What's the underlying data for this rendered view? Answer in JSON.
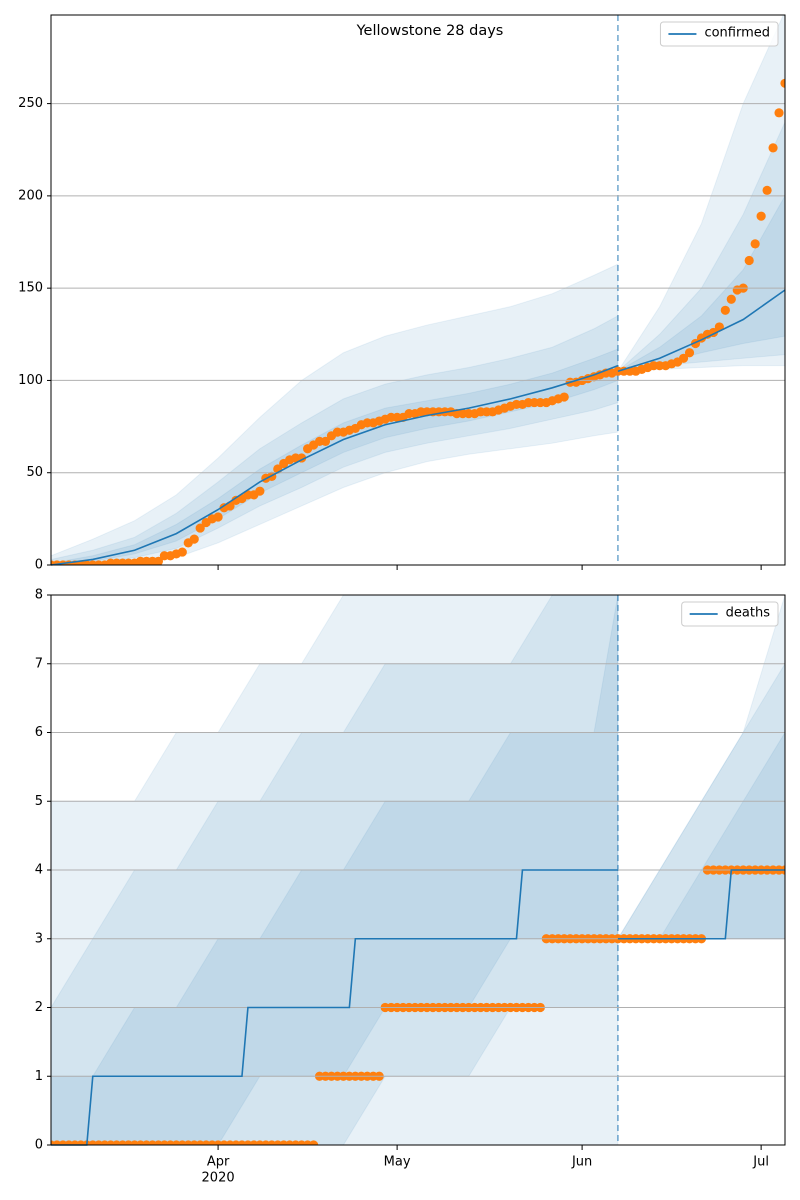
{
  "chart_data": [
    {
      "type": "line",
      "title": "Yellowstone 28 days",
      "sharex": true,
      "legend": "upper right",
      "grid": true,
      "xlim": [
        64,
        187
      ],
      "ylim": [
        0,
        298
      ],
      "yticks": [
        0,
        50,
        100,
        150,
        200,
        250
      ],
      "forecast_start": 159,
      "series": [
        {
          "name": "confirmed",
          "color": "#1f77b4",
          "x": [
            64,
            71,
            78,
            85,
            92,
            99,
            106,
            113,
            120,
            127,
            134,
            141,
            148,
            155,
            159,
            159,
            159,
            166,
            173,
            180,
            187
          ],
          "values": [
            0,
            3,
            8,
            17,
            30,
            45,
            57,
            68,
            76,
            81,
            85,
            90,
            96,
            103,
            108,
            null,
            105,
            112,
            122,
            133,
            149
          ]
        }
      ],
      "band_color": "#1f77b4",
      "band_x": [
        64,
        71,
        78,
        85,
        92,
        99,
        106,
        113,
        120,
        127,
        134,
        141,
        148,
        155,
        159,
        159,
        166,
        173,
        180,
        187
      ],
      "bands": [
        {
          "lower": [
            0,
            0,
            1,
            4,
            12,
            22,
            32,
            42,
            50,
            56,
            60,
            63,
            66,
            70,
            72,
            105,
            106,
            107,
            108,
            108
          ],
          "upper": [
            5,
            14,
            24,
            38,
            58,
            80,
            100,
            115,
            124,
            130,
            135,
            140,
            147,
            157,
            163,
            105,
            140,
            185,
            250,
            300
          ]
        },
        {
          "lower": [
            0,
            1,
            4,
            9,
            20,
            32,
            42,
            53,
            61,
            66,
            70,
            74,
            79,
            84,
            88,
            105,
            108,
            110,
            112,
            114
          ],
          "upper": [
            3,
            8,
            15,
            28,
            45,
            63,
            77,
            90,
            98,
            103,
            107,
            112,
            118,
            128,
            135,
            105,
            125,
            150,
            190,
            240
          ]
        },
        {
          "lower": [
            0,
            2,
            6,
            13,
            25,
            39,
            50,
            61,
            69,
            74,
            78,
            83,
            88,
            95,
            100,
            105,
            109,
            115,
            120,
            124
          ],
          "upper": [
            1,
            5,
            11,
            22,
            36,
            52,
            65,
            77,
            85,
            89,
            93,
            98,
            104,
            112,
            117,
            105,
            118,
            135,
            160,
            200
          ]
        }
      ],
      "observed": {
        "color": "#ff7f0e",
        "x": [
          64,
          65,
          66,
          67,
          68,
          69,
          70,
          71,
          72,
          73,
          74,
          75,
          76,
          77,
          78,
          79,
          80,
          81,
          82,
          83,
          84,
          85,
          86,
          87,
          88,
          89,
          90,
          91,
          92,
          93,
          94,
          95,
          96,
          97,
          98,
          99,
          100,
          101,
          102,
          103,
          104,
          105,
          106,
          107,
          108,
          109,
          110,
          111,
          112,
          113,
          114,
          115,
          116,
          117,
          118,
          119,
          120,
          121,
          122,
          123,
          124,
          125,
          126,
          127,
          128,
          129,
          130,
          131,
          132,
          133,
          134,
          135,
          136,
          137,
          138,
          139,
          140,
          141,
          142,
          143,
          144,
          145,
          146,
          147,
          148,
          149,
          150,
          151,
          152,
          153,
          154,
          155,
          156,
          157,
          158,
          159,
          160,
          161,
          162,
          163,
          164,
          165,
          166,
          167,
          168,
          169,
          170,
          171,
          172,
          173,
          174,
          175,
          176,
          177,
          178,
          179,
          180,
          181,
          182,
          183,
          184,
          185,
          186,
          187
        ],
        "values": [
          0,
          0,
          0,
          0,
          0,
          0,
          0,
          0,
          0,
          0,
          1,
          1,
          1,
          1,
          1,
          2,
          2,
          2,
          2,
          5,
          5,
          6,
          7,
          12,
          14,
          20,
          23,
          25,
          26,
          31,
          32,
          35,
          36,
          38,
          38,
          40,
          47,
          48,
          52,
          55,
          57,
          58,
          58,
          63,
          65,
          67,
          67,
          70,
          72,
          72,
          73,
          74,
          76,
          77,
          77,
          78,
          79,
          80,
          80,
          80,
          82,
          82,
          83,
          83,
          83,
          83,
          83,
          83,
          82,
          82,
          82,
          82,
          83,
          83,
          83,
          84,
          85,
          86,
          87,
          87,
          88,
          88,
          88,
          88,
          89,
          90,
          91,
          99,
          99,
          100,
          101,
          102,
          103,
          104,
          104,
          105,
          105,
          105,
          105,
          106,
          107,
          108,
          108,
          108,
          109,
          110,
          112,
          115,
          120,
          123,
          125,
          126,
          129,
          138,
          144,
          149,
          150,
          165,
          174,
          189,
          203,
          226,
          245,
          261
        ]
      }
    },
    {
      "type": "line",
      "legend": "upper right",
      "grid": true,
      "xlim": [
        64,
        187
      ],
      "ylim": [
        0,
        8
      ],
      "yticks": [
        0,
        1,
        2,
        3,
        4,
        5,
        6,
        7,
        8
      ],
      "forecast_start": 159,
      "xticks": [
        {
          "value": 92,
          "label": "Apr"
        },
        {
          "value": 122,
          "label": "May"
        },
        {
          "value": 153,
          "label": "Jun"
        },
        {
          "value": 183,
          "label": "Jul"
        }
      ],
      "year_label": "2020",
      "series": [
        {
          "name": "deaths",
          "color": "#1f77b4",
          "x": [
            64,
            70,
            71,
            96,
            97,
            114,
            115,
            142,
            143,
            159,
            159,
            159,
            177,
            178,
            187
          ],
          "values": [
            0,
            0,
            1,
            1,
            2,
            2,
            3,
            3,
            4,
            4,
            null,
            3,
            3,
            4,
            4
          ]
        }
      ],
      "band_color": "#1f77b4",
      "band_x": [
        64,
        71,
        78,
        85,
        92,
        99,
        106,
        113,
        120,
        127,
        134,
        141,
        148,
        155,
        159,
        159,
        166,
        173,
        180,
        187
      ],
      "bands": [
        {
          "lower": [
            0,
            0,
            0,
            0,
            0,
            0,
            0,
            0,
            0,
            0,
            0,
            0,
            0,
            0,
            0,
            3,
            3,
            3,
            3,
            3
          ],
          "upper": [
            5,
            5,
            5,
            6,
            6,
            7,
            7,
            8,
            8,
            8,
            8,
            8,
            8,
            8,
            8,
            3,
            4,
            5,
            6,
            8
          ]
        },
        {
          "lower": [
            0,
            0,
            0,
            0,
            0,
            0,
            0,
            0,
            1,
            1,
            1,
            2,
            2,
            2,
            2,
            3,
            3,
            3,
            3,
            3
          ],
          "upper": [
            2,
            3,
            4,
            4,
            5,
            5,
            6,
            6,
            7,
            7,
            7,
            7,
            8,
            8,
            8,
            3,
            4,
            5,
            6,
            7
          ]
        },
        {
          "lower": [
            0,
            0,
            0,
            0,
            0,
            1,
            1,
            1,
            2,
            2,
            2,
            3,
            3,
            3,
            3,
            3,
            3,
            3,
            3,
            3
          ],
          "upper": [
            1,
            1,
            2,
            2,
            3,
            3,
            4,
            4,
            5,
            5,
            5,
            6,
            6,
            6,
            8,
            3,
            3,
            4,
            5,
            6
          ]
        }
      ],
      "observed": {
        "color": "#ff7f0e",
        "x": [
          64,
          65,
          66,
          67,
          68,
          69,
          70,
          71,
          72,
          73,
          74,
          75,
          76,
          77,
          78,
          79,
          80,
          81,
          82,
          83,
          84,
          85,
          86,
          87,
          88,
          89,
          90,
          91,
          92,
          93,
          94,
          95,
          96,
          97,
          98,
          99,
          100,
          101,
          102,
          103,
          104,
          105,
          106,
          107,
          108,
          109,
          110,
          111,
          112,
          113,
          114,
          115,
          116,
          117,
          118,
          119,
          120,
          121,
          122,
          123,
          124,
          125,
          126,
          127,
          128,
          129,
          130,
          131,
          132,
          133,
          134,
          135,
          136,
          137,
          138,
          139,
          140,
          141,
          142,
          143,
          144,
          145,
          146,
          147,
          148,
          149,
          150,
          151,
          152,
          153,
          154,
          155,
          156,
          157,
          158,
          159,
          160,
          161,
          162,
          163,
          164,
          165,
          166,
          167,
          168,
          169,
          170,
          171,
          172,
          173,
          174,
          175,
          176,
          177,
          178,
          179,
          180,
          181,
          182,
          183,
          184,
          185,
          186,
          187
        ],
        "values": [
          0,
          0,
          0,
          0,
          0,
          0,
          0,
          0,
          0,
          0,
          0,
          0,
          0,
          0,
          0,
          0,
          0,
          0,
          0,
          0,
          0,
          0,
          0,
          0,
          0,
          0,
          0,
          0,
          0,
          0,
          0,
          0,
          0,
          0,
          0,
          0,
          0,
          0,
          0,
          0,
          0,
          0,
          0,
          0,
          0,
          1,
          1,
          1,
          1,
          1,
          1,
          1,
          1,
          1,
          1,
          1,
          2,
          2,
          2,
          2,
          2,
          2,
          2,
          2,
          2,
          2,
          2,
          2,
          2,
          2,
          2,
          2,
          2,
          2,
          2,
          2,
          2,
          2,
          2,
          2,
          2,
          2,
          2,
          3,
          3,
          3,
          3,
          3,
          3,
          3,
          3,
          3,
          3,
          3,
          3,
          3,
          3,
          3,
          3,
          3,
          3,
          3,
          3,
          3,
          3,
          3,
          3,
          3,
          3,
          3,
          4,
          4,
          4,
          4,
          4,
          4,
          4,
          4,
          4,
          4,
          4,
          4,
          4,
          4
        ]
      }
    }
  ]
}
